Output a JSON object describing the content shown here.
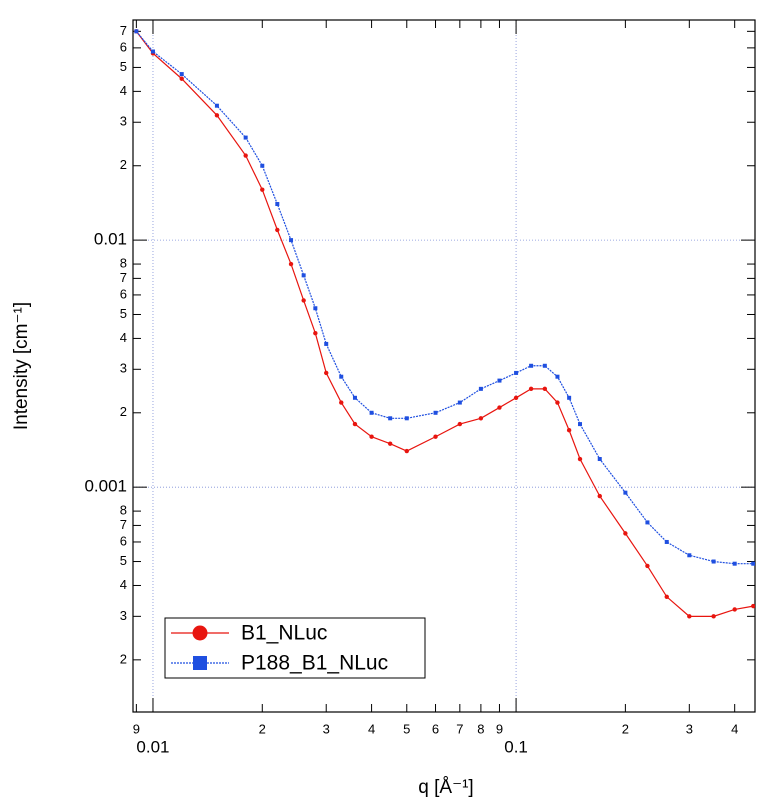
{
  "chart_data": {
    "type": "line",
    "xlabel": "q [Å⁻¹]",
    "ylabel": "Intensity [cm⁻¹]",
    "xscale": "log",
    "yscale": "log",
    "grid": true,
    "legend": "lower left",
    "xlim": [
      0.00881,
      0.455
    ],
    "ylim": [
      0.000123,
      0.0778
    ],
    "xticks": [
      {
        "value": 0.009,
        "label": "9"
      },
      0.01,
      {
        "value": 0.02,
        "label": "2"
      },
      {
        "value": 0.03,
        "label": "3"
      },
      {
        "value": 0.04,
        "label": "4"
      },
      {
        "value": 0.05,
        "label": "5"
      },
      {
        "value": 0.06,
        "label": "6"
      },
      {
        "value": 0.07,
        "label": "7"
      },
      {
        "value": 0.08,
        "label": "8"
      },
      {
        "value": 0.09,
        "label": "9"
      },
      0.1,
      {
        "value": 0.2,
        "label": "2"
      },
      {
        "value": 0.3,
        "label": "3"
      },
      {
        "value": 0.4,
        "label": "4"
      }
    ],
    "yticks": [
      {
        "value": 0.07,
        "label": "7"
      },
      {
        "value": 0.06,
        "label": "6"
      },
      {
        "value": 0.05,
        "label": "5"
      },
      {
        "value": 0.04,
        "label": "4"
      },
      {
        "value": 0.03,
        "label": "3"
      },
      {
        "value": 0.02,
        "label": "2"
      },
      0.01,
      {
        "value": 0.008,
        "label": "8"
      },
      {
        "value": 0.007,
        "label": "7"
      },
      {
        "value": 0.006,
        "label": "6"
      },
      {
        "value": 0.005,
        "label": "5"
      },
      {
        "value": 0.004,
        "label": "4"
      },
      {
        "value": 0.003,
        "label": "3"
      },
      {
        "value": 0.002,
        "label": "2"
      },
      0.001,
      {
        "value": 0.0008,
        "label": "8"
      },
      {
        "value": 0.0007,
        "label": "7"
      },
      {
        "value": 0.0006,
        "label": "6"
      },
      {
        "value": 0.0005,
        "label": "5"
      },
      {
        "value": 0.0004,
        "label": "4"
      },
      {
        "value": 0.0003,
        "label": "3"
      },
      {
        "value": 0.0002,
        "label": "2"
      }
    ],
    "x": [
      0.009,
      0.01,
      0.012,
      0.015,
      0.018,
      0.02,
      0.022,
      0.024,
      0.026,
      0.028,
      0.03,
      0.033,
      0.036,
      0.04,
      0.045,
      0.05,
      0.06,
      0.07,
      0.08,
      0.09,
      0.1,
      0.11,
      0.12,
      0.13,
      0.14,
      0.15,
      0.17,
      0.2,
      0.23,
      0.26,
      0.3,
      0.35,
      0.4,
      0.45
    ],
    "series": [
      {
        "name": "B1_NLuc",
        "color": "#e8150f",
        "marker": "circle",
        "values": [
          0.07,
          0.057,
          0.045,
          0.032,
          0.022,
          0.016,
          0.011,
          0.008,
          0.0057,
          0.0042,
          0.0029,
          0.0022,
          0.0018,
          0.0016,
          0.0015,
          0.0014,
          0.0016,
          0.0018,
          0.0019,
          0.0021,
          0.0023,
          0.0025,
          0.0025,
          0.0022,
          0.0017,
          0.0013,
          0.00092,
          0.00065,
          0.00048,
          0.00036,
          0.0003,
          0.0003,
          0.00032,
          0.00033
        ]
      },
      {
        "name": "P188_B1_NLuc",
        "color": "#1f4fe0",
        "marker": "square",
        "values": [
          0.07,
          0.058,
          0.047,
          0.035,
          0.026,
          0.02,
          0.014,
          0.01,
          0.0072,
          0.0053,
          0.0038,
          0.0028,
          0.0023,
          0.002,
          0.0019,
          0.0019,
          0.002,
          0.0022,
          0.0025,
          0.0027,
          0.0029,
          0.0031,
          0.0031,
          0.0028,
          0.0023,
          0.0018,
          0.0013,
          0.00095,
          0.00072,
          0.0006,
          0.00053,
          0.0005,
          0.00049,
          0.00049
        ]
      }
    ]
  }
}
